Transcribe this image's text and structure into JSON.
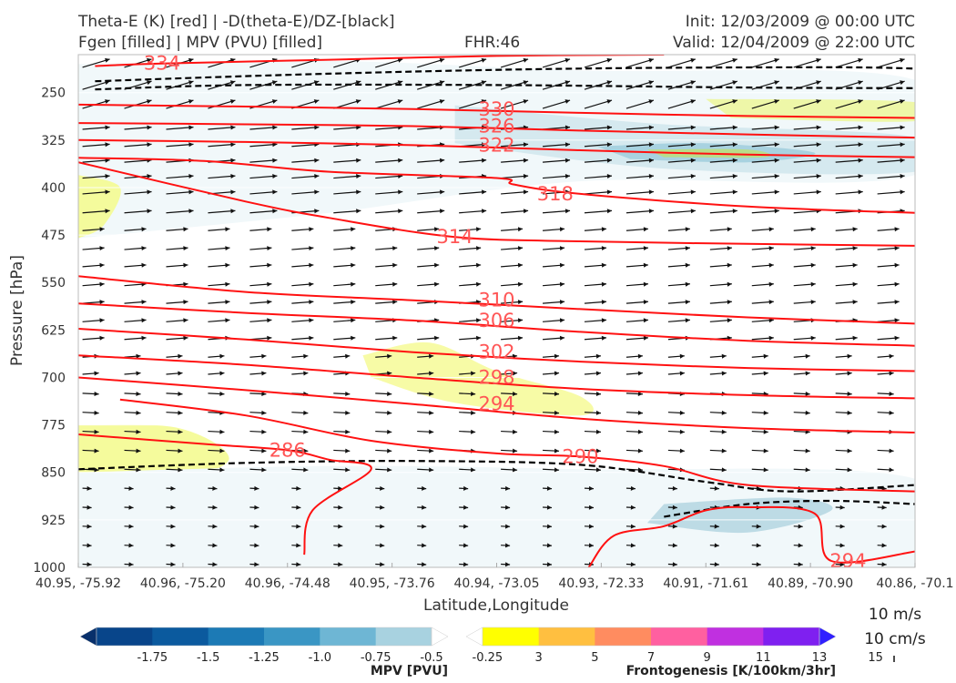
{
  "header": {
    "line1_left": "Theta-E (K) [red] | -D(theta-E)/DZ-[black]",
    "line2_left": "Fgen [filled] | MPV (PVU) [filled]",
    "fhr": "FHR:46",
    "init": "Init: 12/03/2009 @ 00:00 UTC",
    "valid": "Valid: 12/04/2009 @ 22:00 UTC"
  },
  "chart_data": {
    "type": "cross-section",
    "xlabel": "Latitude,Longitude",
    "ylabel": "Pressure [hPa]",
    "x_ticks": [
      "40.95, -75.92",
      "40.96, -75.20",
      "40.96, -74.48",
      "40.95, -73.76",
      "40.94, -73.05",
      "40.93, -72.33",
      "40.91, -71.61",
      "40.89, -70.90",
      "40.86, -70.1"
    ],
    "y_ticks": [
      250,
      325,
      400,
      475,
      550,
      625,
      700,
      775,
      850,
      925,
      1000
    ],
    "ylim": [
      1000,
      190
    ],
    "grid": true,
    "theta_e_contours": [
      {
        "level": 334,
        "label": "334",
        "points": [
          [
            0.02,
            208
          ],
          [
            0.1,
            204
          ],
          [
            0.3,
            198
          ],
          [
            0.5,
            192
          ],
          [
            0.7,
            190
          ]
        ]
      },
      {
        "level": 330,
        "label": "330",
        "points": [
          [
            0,
            269
          ],
          [
            0.2,
            272
          ],
          [
            0.4,
            276
          ],
          [
            0.6,
            282
          ],
          [
            0.8,
            287
          ],
          [
            1,
            290
          ]
        ]
      },
      {
        "level": 326,
        "label": "326",
        "points": [
          [
            0,
            298
          ],
          [
            0.2,
            300
          ],
          [
            0.4,
            303
          ],
          [
            0.6,
            310
          ],
          [
            0.8,
            316
          ],
          [
            1,
            321
          ]
        ]
      },
      {
        "level": 322,
        "label": "322",
        "points": [
          [
            0,
            325
          ],
          [
            0.2,
            328
          ],
          [
            0.4,
            333
          ],
          [
            0.6,
            341
          ],
          [
            0.8,
            348
          ],
          [
            1,
            352
          ]
        ]
      },
      {
        "level": 318,
        "label": "318",
        "points": [
          [
            0,
            353
          ],
          [
            0.15,
            358
          ],
          [
            0.3,
            375
          ],
          [
            0.5,
            385
          ],
          [
            0.52,
            395
          ],
          [
            0.6,
            410
          ],
          [
            0.8,
            430
          ],
          [
            1,
            440
          ]
        ]
      },
      {
        "level": 314,
        "label": "314",
        "points": [
          [
            0,
            360
          ],
          [
            0.2,
            422
          ],
          [
            0.3,
            448
          ],
          [
            0.45,
            478
          ],
          [
            0.6,
            485
          ],
          [
            0.8,
            489
          ],
          [
            1,
            492
          ]
        ]
      },
      {
        "level": 310,
        "label": "310",
        "points": [
          [
            0,
            540
          ],
          [
            0.2,
            565
          ],
          [
            0.4,
            578
          ],
          [
            0.6,
            592
          ],
          [
            0.8,
            605
          ],
          [
            1,
            615
          ]
        ]
      },
      {
        "level": 306,
        "label": "306",
        "points": [
          [
            0,
            583
          ],
          [
            0.2,
            598
          ],
          [
            0.4,
            610
          ],
          [
            0.6,
            628
          ],
          [
            0.8,
            642
          ],
          [
            1,
            650
          ]
        ]
      },
      {
        "level": 302,
        "label": "302",
        "points": [
          [
            0,
            623
          ],
          [
            0.2,
            640
          ],
          [
            0.4,
            660
          ],
          [
            0.6,
            675
          ],
          [
            0.8,
            685
          ],
          [
            1,
            690
          ]
        ]
      },
      {
        "level": 298,
        "label": "298",
        "points": [
          [
            0,
            665
          ],
          [
            0.2,
            680
          ],
          [
            0.4,
            700
          ],
          [
            0.6,
            718
          ],
          [
            0.8,
            728
          ],
          [
            1,
            733
          ]
        ]
      },
      {
        "level": 294,
        "label": "294",
        "points": [
          [
            0,
            700
          ],
          [
            0.2,
            720
          ],
          [
            0.4,
            742
          ],
          [
            0.6,
            765
          ],
          [
            0.8,
            780
          ],
          [
            1,
            787
          ]
        ]
      },
      {
        "level": 290,
        "label": "290",
        "points": [
          [
            0.05,
            735
          ],
          [
            0.2,
            760
          ],
          [
            0.35,
            800
          ],
          [
            0.5,
            820
          ],
          [
            0.6,
            825
          ],
          [
            0.7,
            840
          ],
          [
            0.8,
            870
          ],
          [
            1,
            880
          ]
        ]
      },
      {
        "level": 286,
        "label": "286",
        "points": [
          [
            0,
            790
          ],
          [
            0.15,
            805
          ],
          [
            0.25,
            815
          ],
          [
            0.3,
            830
          ],
          [
            0.35,
            845
          ],
          [
            0.28,
            910
          ],
          [
            0.27,
            980
          ]
        ]
      },
      {
        "level": 294,
        "label": "294",
        "points": [
          [
            0.61,
            1000
          ],
          [
            0.64,
            950
          ],
          [
            0.7,
            935
          ],
          [
            0.75,
            910
          ],
          [
            0.8,
            905
          ],
          [
            0.88,
            915
          ],
          [
            0.9,
            990
          ],
          [
            1,
            975
          ]
        ]
      }
    ],
    "ddz_contours": [
      {
        "points": [
          [
            0.02,
            245
          ],
          [
            0.2,
            238
          ],
          [
            0.5,
            238
          ],
          [
            0.8,
            242
          ],
          [
            1,
            243
          ]
        ]
      },
      {
        "points": [
          [
            0.02,
            232
          ],
          [
            0.3,
            220
          ],
          [
            0.6,
            212
          ],
          [
            0.9,
            210
          ],
          [
            1,
            212
          ]
        ]
      },
      {
        "points": [
          [
            0,
            845
          ],
          [
            0.2,
            835
          ],
          [
            0.4,
            832
          ],
          [
            0.6,
            838
          ],
          [
            0.75,
            865
          ],
          [
            0.85,
            880
          ],
          [
            1,
            870
          ]
        ]
      },
      {
        "points": [
          [
            0.7,
            920
          ],
          [
            0.8,
            900
          ],
          [
            0.9,
            895
          ],
          [
            1,
            900
          ]
        ]
      }
    ],
    "wind_scale": [
      "10 m/s",
      "10 cm/s"
    ],
    "colorbars": [
      {
        "name": "MPV [PVU]",
        "ticks": [
          "-1.75",
          "-1.5",
          "-1.25",
          "-1.0",
          "-0.75",
          "-0.5",
          "-0.25"
        ],
        "colors": [
          "#08306b",
          "#08458a",
          "#0b5a9e",
          "#1c7ab5",
          "#3a96c4",
          "#6eb6d4",
          "#a8d2e0",
          "#ffffff"
        ]
      },
      {
        "name": "Frontogenesis [K/100km/3hr]",
        "ticks": [
          "3",
          "5",
          "7",
          "9",
          "11",
          "13",
          "15"
        ],
        "colors": [
          "#ffffff",
          "#ffff00",
          "#ffbf40",
          "#ff8c60",
          "#ff60a0",
          "#c030e0",
          "#7f20f0",
          "#3020ff"
        ]
      }
    ]
  }
}
